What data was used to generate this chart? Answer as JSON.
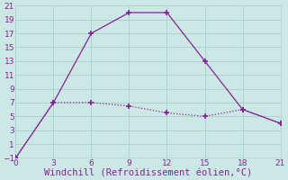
{
  "line1_x": [
    0,
    3,
    6,
    9,
    12,
    15,
    18,
    21
  ],
  "line1_y": [
    -1,
    7,
    17,
    20,
    20,
    13,
    6,
    4
  ],
  "line2_x": [
    0,
    3,
    6,
    9,
    12,
    15,
    18,
    21
  ],
  "line2_y": [
    -1,
    7,
    7,
    6.5,
    5.5,
    5,
    6,
    4
  ],
  "line_color": "#882299",
  "bg_color": "#cce8e4",
  "grid_color": "#aad4cc",
  "xlabel": "Windchill (Refroidissement éolien,°C)",
  "xlim": [
    0,
    21
  ],
  "ylim": [
    -1,
    21
  ],
  "xticks": [
    0,
    3,
    6,
    9,
    12,
    15,
    18,
    21
  ],
  "yticks": [
    -1,
    1,
    3,
    5,
    7,
    9,
    11,
    13,
    15,
    17,
    19,
    21
  ],
  "marker": "+",
  "markersize": 4,
  "linewidth": 0.9,
  "xlabel_fontsize": 7.5,
  "tick_fontsize": 6.5,
  "tick_color": "#882299"
}
